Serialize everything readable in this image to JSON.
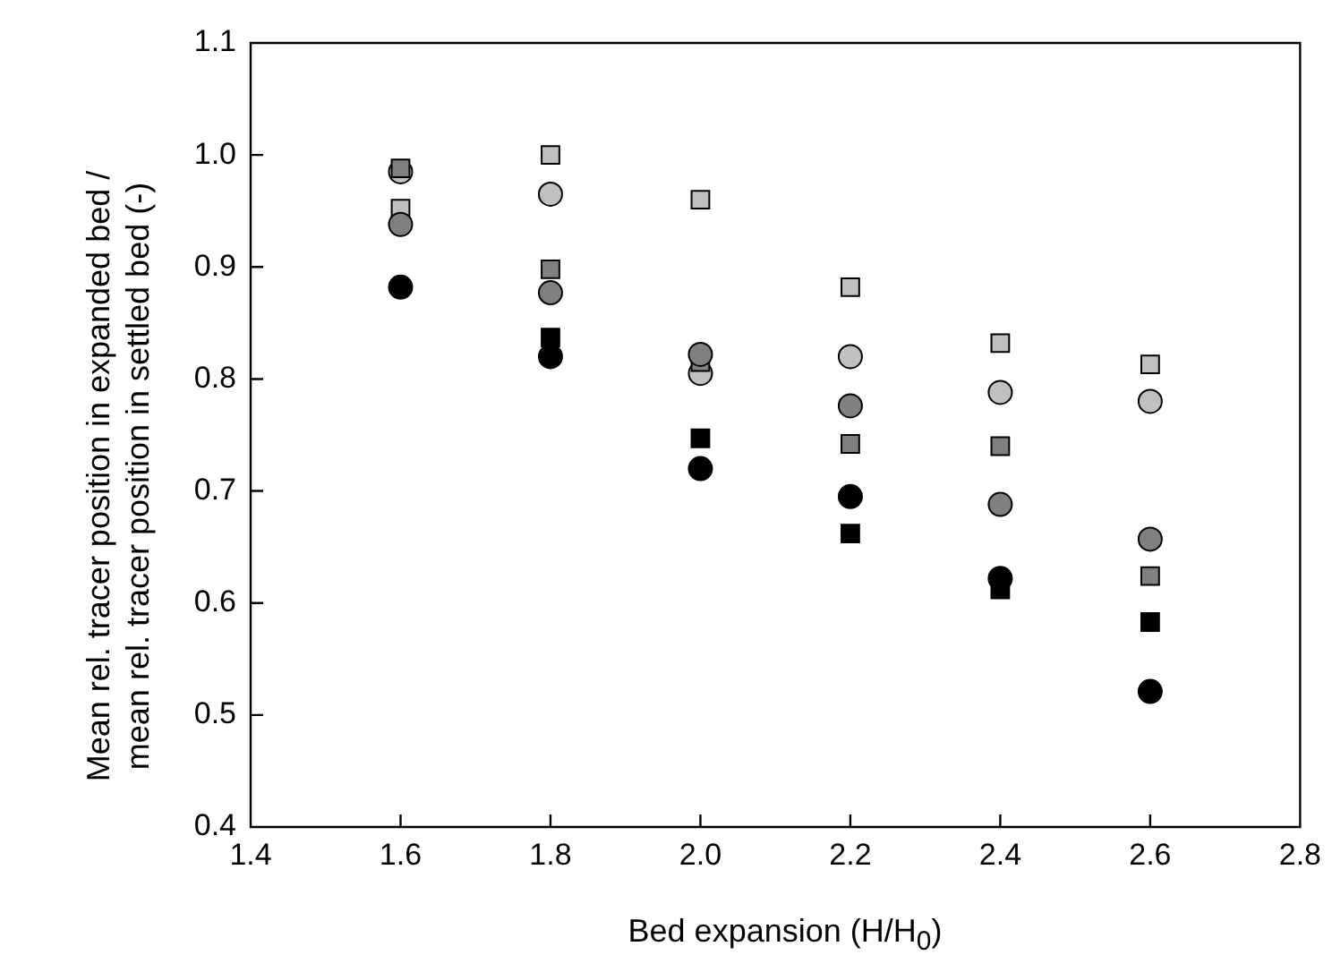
{
  "chart_data": {
    "type": "scatter",
    "xlabel": "Bed expansion (H/H$_{0}$)",
    "ylabel": "Mean rel. tracer position in expanded bed /\nmean rel. tracer position in settled bed (-)",
    "x": [
      1.6,
      1.8,
      2.0,
      2.2,
      2.4,
      2.6
    ],
    "xlim": [
      1.4,
      2.8
    ],
    "xticks": [
      {
        "value": 1.4,
        "label": "1.4"
      },
      {
        "value": 1.6,
        "label": "1.6"
      },
      {
        "value": 1.8,
        "label": "1.8"
      },
      {
        "value": 2.0,
        "label": "2.0"
      },
      {
        "value": 2.2,
        "label": "2.2"
      },
      {
        "value": 2.4,
        "label": "2.4"
      },
      {
        "value": 2.6,
        "label": "2.6"
      },
      {
        "value": 2.8,
        "label": "2.8"
      }
    ],
    "ylim": [
      0.4,
      1.1
    ],
    "yticks": [
      {
        "value": 0.4,
        "label": "0.4"
      },
      {
        "value": 0.5,
        "label": "0.5"
      },
      {
        "value": 0.6,
        "label": "0.6"
      },
      {
        "value": 0.7,
        "label": "0.7"
      },
      {
        "value": 0.8,
        "label": "0.8"
      },
      {
        "value": 0.9,
        "label": "0.9"
      },
      {
        "value": 1.0,
        "label": "1.0"
      },
      {
        "value": 1.1,
        "label": "1.1"
      }
    ],
    "grid": false,
    "legend": false,
    "series": [
      {
        "color": "#000000",
        "marker": "circle",
        "values": [
          0.882,
          0.82,
          0.72,
          0.695,
          0.622,
          0.521
        ]
      },
      {
        "color": "#000000",
        "marker": "square",
        "values": [
          null,
          0.837,
          0.747,
          0.662,
          0.612,
          0.583
        ]
      },
      {
        "color": "#808080",
        "marker": "circle",
        "values": [
          0.938,
          0.877,
          0.822,
          0.776,
          0.688,
          0.657
        ]
      },
      {
        "color": "#808080",
        "marker": "square",
        "values": [
          0.988,
          0.898,
          0.815,
          0.742,
          0.74,
          0.624
        ]
      },
      {
        "color": "#c0c0c0",
        "marker": "circle",
        "values": [
          0.985,
          0.965,
          0.805,
          0.82,
          0.788,
          0.78
        ]
      },
      {
        "color": "#c0c0c0",
        "marker": "square",
        "values": [
          0.952,
          1.0,
          0.96,
          0.882,
          0.832,
          0.813
        ]
      }
    ]
  }
}
